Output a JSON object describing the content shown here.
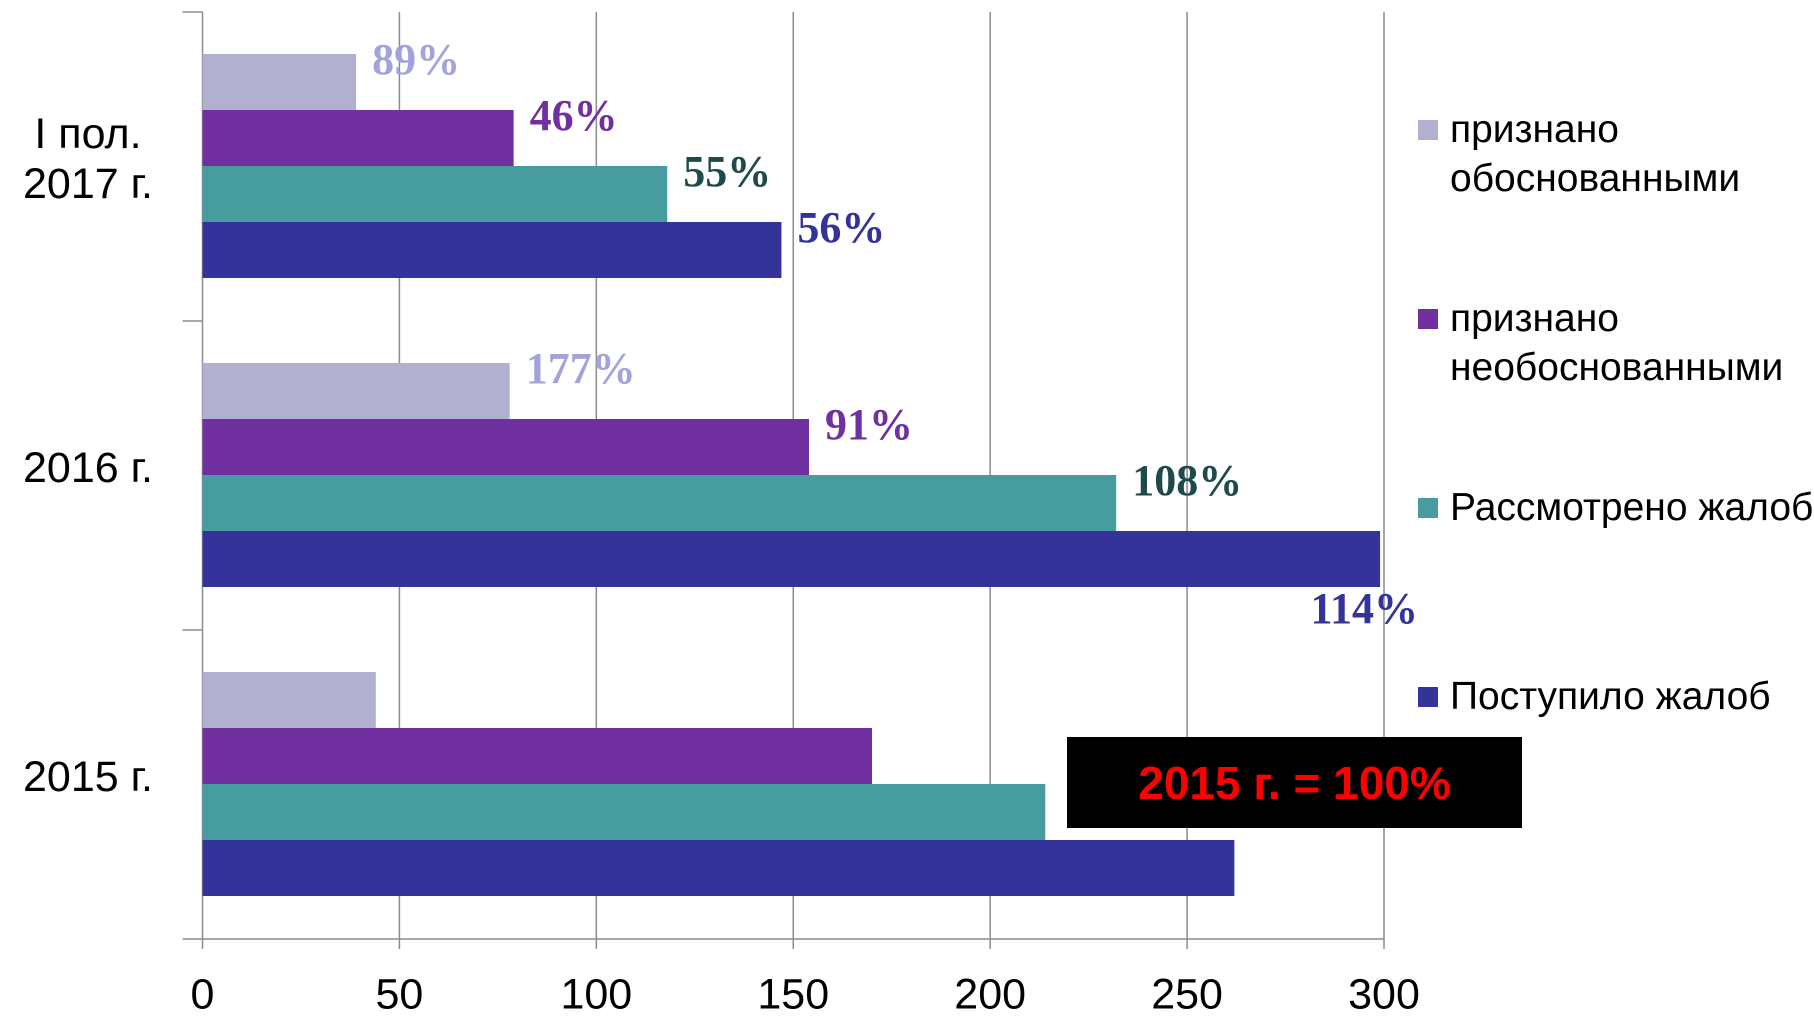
{
  "chart_data": {
    "type": "barh",
    "categories": [
      "2015 г.",
      "2016 г.",
      "I пол. 2017 г."
    ],
    "series": [
      {
        "name": "признано обоснованными",
        "color": "#b1b0d0",
        "label_color": "#a3a3dc",
        "values": [
          44,
          78,
          39
        ],
        "value_labels": [
          null,
          "177%",
          "89%"
        ]
      },
      {
        "name": "признано необоснованными",
        "color": "#7030a0",
        "label_color": "#7030a0",
        "values": [
          170,
          154,
          79
        ],
        "value_labels": [
          null,
          "91%",
          "46%"
        ]
      },
      {
        "name": "Рассмотрено жалоб",
        "color": "#469c9e",
        "label_color": "#1f4a4a",
        "values": [
          214,
          232,
          118
        ],
        "value_labels": [
          null,
          "108%",
          "55%"
        ]
      },
      {
        "name": "Поступило жалоб",
        "color": "#333399",
        "label_color": "#333399",
        "values": [
          262,
          299,
          147
        ],
        "value_labels": [
          null,
          "114%",
          "56%"
        ]
      }
    ],
    "xlim": [
      0,
      300
    ],
    "xticks": [
      0,
      50,
      100,
      150,
      200,
      250,
      300
    ],
    "grid": true,
    "annotation": "2015 г. = 100%"
  }
}
